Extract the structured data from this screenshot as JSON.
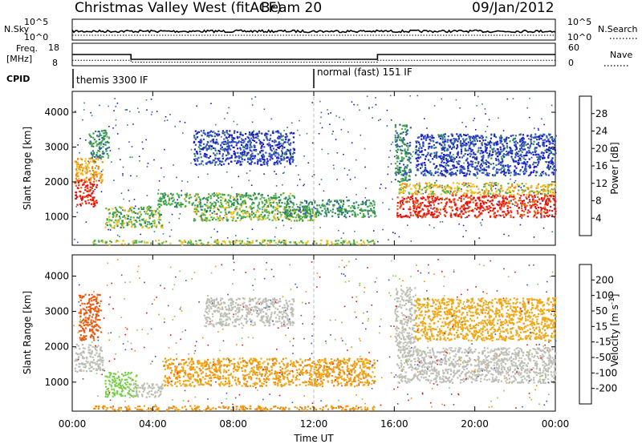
{
  "header": {
    "station": "Christmas Valley West (fitACF)",
    "beam": "Beam 20",
    "date": "09/Jan/2012"
  },
  "summary_labels": {
    "nsky": "N.Sky",
    "nsearch": "N.Search",
    "freq": "Freq.",
    "freq_unit": "[MHz]",
    "nave": "Nave",
    "cpid": "CPID",
    "nsky_ticks": [
      "10^5",
      "10^0"
    ],
    "nsearch_ticks": [
      "10^5",
      "10^0"
    ],
    "freq_ticks": [
      "18",
      "8"
    ],
    "nave_ticks": [
      "60",
      "0"
    ]
  },
  "cpid_labels": [
    {
      "text": "themis 3300 IF"
    },
    {
      "text": "normal (fast) 151 IF"
    }
  ],
  "colors": {
    "power": [
      "#1a1acc",
      "#3356bb",
      "#2f8c5a",
      "#4fb24a",
      "#f0c020",
      "#f08a10",
      "#ee5a10",
      "#e81010"
    ],
    "velocity": [
      "#e81010",
      "#ee5a10",
      "#f08a10",
      "#f0a818",
      "#c8c8c0",
      "#78d048",
      "#2f8c5a",
      "#3356bb",
      "#1a1acc"
    ],
    "ground": "#bdbdb5"
  },
  "chart_data": [
    {
      "type": "line",
      "name": "summary",
      "x_range": [
        "00:00",
        "24:00"
      ],
      "freq_segments_mhz": [
        {
          "start": "00:00",
          "end": "02:55",
          "value": 13.0
        },
        {
          "start": "02:55",
          "end": "15:10",
          "value": 10.5
        },
        {
          "start": "15:10",
          "end": "24:00",
          "value": 13.0
        }
      ],
      "nave_segments": [
        {
          "start": "00:00",
          "end": "02:55",
          "value": 12
        },
        {
          "start": "02:55",
          "end": "15:10",
          "value": 6
        },
        {
          "start": "15:10",
          "end": "24:00",
          "value": 12
        }
      ],
      "cpid_change_time": "12:00"
    },
    {
      "type": "heatmap",
      "name": "power",
      "xlabel": "",
      "ylabel": "Slant Range [km]",
      "xlim": [
        0,
        24
      ],
      "ylim": [
        180,
        4600
      ],
      "y_ticks": [
        "1000",
        "2000",
        "3000",
        "4000"
      ],
      "colorbar_label": "Power [dB]",
      "colorbar_ticks": [
        "4",
        "8",
        "12",
        "16",
        "20",
        "24",
        "28"
      ],
      "colorbar_range": [
        0,
        32
      ],
      "regions": [
        {
          "t0": 0.1,
          "t1": 1.2,
          "r0": 1300,
          "r1": 2100,
          "level": 29
        },
        {
          "t0": 0.1,
          "t1": 1.5,
          "r0": 2000,
          "r1": 2700,
          "level": 20
        },
        {
          "t0": 0.8,
          "t1": 1.8,
          "r0": 2700,
          "r1": 3500,
          "level": 10
        },
        {
          "t0": 1.6,
          "t1": 4.5,
          "r0": 700,
          "r1": 1300,
          "level": 14
        },
        {
          "t0": 4.2,
          "t1": 11.0,
          "r0": 1300,
          "r1": 1700,
          "level": 13
        },
        {
          "t0": 6.0,
          "t1": 12.0,
          "r0": 900,
          "r1": 1300,
          "level": 15
        },
        {
          "t0": 10.5,
          "t1": 15.0,
          "r0": 1000,
          "r1": 1500,
          "level": 11
        },
        {
          "t0": 6.0,
          "t1": 11.0,
          "r0": 2500,
          "r1": 3500,
          "level": 5
        },
        {
          "t0": 1.0,
          "t1": 15.0,
          "r0": 220,
          "r1": 350,
          "level": 16
        },
        {
          "t0": 16.1,
          "t1": 24.0,
          "r0": 1000,
          "r1": 1650,
          "level": 29
        },
        {
          "t0": 16.2,
          "t1": 24.0,
          "r0": 1650,
          "r1": 2000,
          "level": 18
        },
        {
          "t0": 16.0,
          "t1": 16.8,
          "r0": 2000,
          "r1": 3700,
          "level": 10
        },
        {
          "t0": 17.0,
          "t1": 24.0,
          "r0": 2200,
          "r1": 3400,
          "level": 5
        }
      ]
    },
    {
      "type": "heatmap",
      "name": "velocity",
      "xlabel": "Time UT",
      "ylabel": "Slant Range [km]",
      "xlim": [
        0,
        24
      ],
      "ylim": [
        180,
        4600
      ],
      "x_ticks": [
        "00:00",
        "04:00",
        "08:00",
        "12:00",
        "16:00",
        "20:00",
        "00:00"
      ],
      "y_ticks": [
        "1000",
        "2000",
        "3000",
        "4000"
      ],
      "colorbar_label": "Velocity [m s^-1]",
      "colorbar_ticks": [
        "200",
        "100",
        "50",
        "15",
        "-15",
        "-50",
        "-100",
        "-200"
      ],
      "colorbar_range": [
        -300,
        300
      ],
      "regions": [
        {
          "t0": 0.1,
          "t1": 1.5,
          "r0": 1300,
          "r1": 2100,
          "level": 0
        },
        {
          "t0": 0.3,
          "t1": 1.4,
          "r0": 2200,
          "r1": 3500,
          "level": -150
        },
        {
          "t0": 1.6,
          "t1": 3.2,
          "r0": 600,
          "r1": 1300,
          "level": 30
        },
        {
          "t0": 3.0,
          "t1": 4.5,
          "r0": 600,
          "r1": 1000,
          "level": 0
        },
        {
          "t0": 4.5,
          "t1": 15.0,
          "r0": 900,
          "r1": 1700,
          "level": -45
        },
        {
          "t0": 6.5,
          "t1": 11.0,
          "r0": 2600,
          "r1": 3400,
          "level": 0
        },
        {
          "t0": 1.0,
          "t1": 15.0,
          "r0": 220,
          "r1": 350,
          "level": -55
        },
        {
          "t0": 16.1,
          "t1": 24.0,
          "r0": 1000,
          "r1": 2000,
          "level": 0
        },
        {
          "t0": 16.0,
          "t1": 17.0,
          "r0": 2000,
          "r1": 3700,
          "level": 0
        },
        {
          "t0": 17.0,
          "t1": 24.0,
          "r0": 2200,
          "r1": 3400,
          "level": -30
        }
      ]
    }
  ]
}
